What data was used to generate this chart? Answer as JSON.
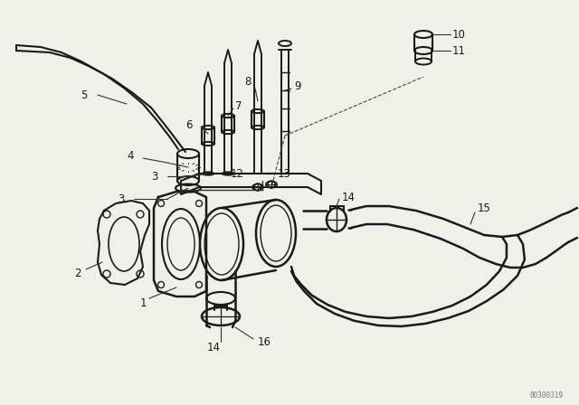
{
  "bg_color": "#f0f0eb",
  "line_color": "#1a1a1a",
  "label_color": "#111111",
  "watermark": "00300319",
  "lw": 1.4,
  "fig_w": 6.4,
  "fig_h": 4.48,
  "dpi": 100,
  "fs": 8.5
}
